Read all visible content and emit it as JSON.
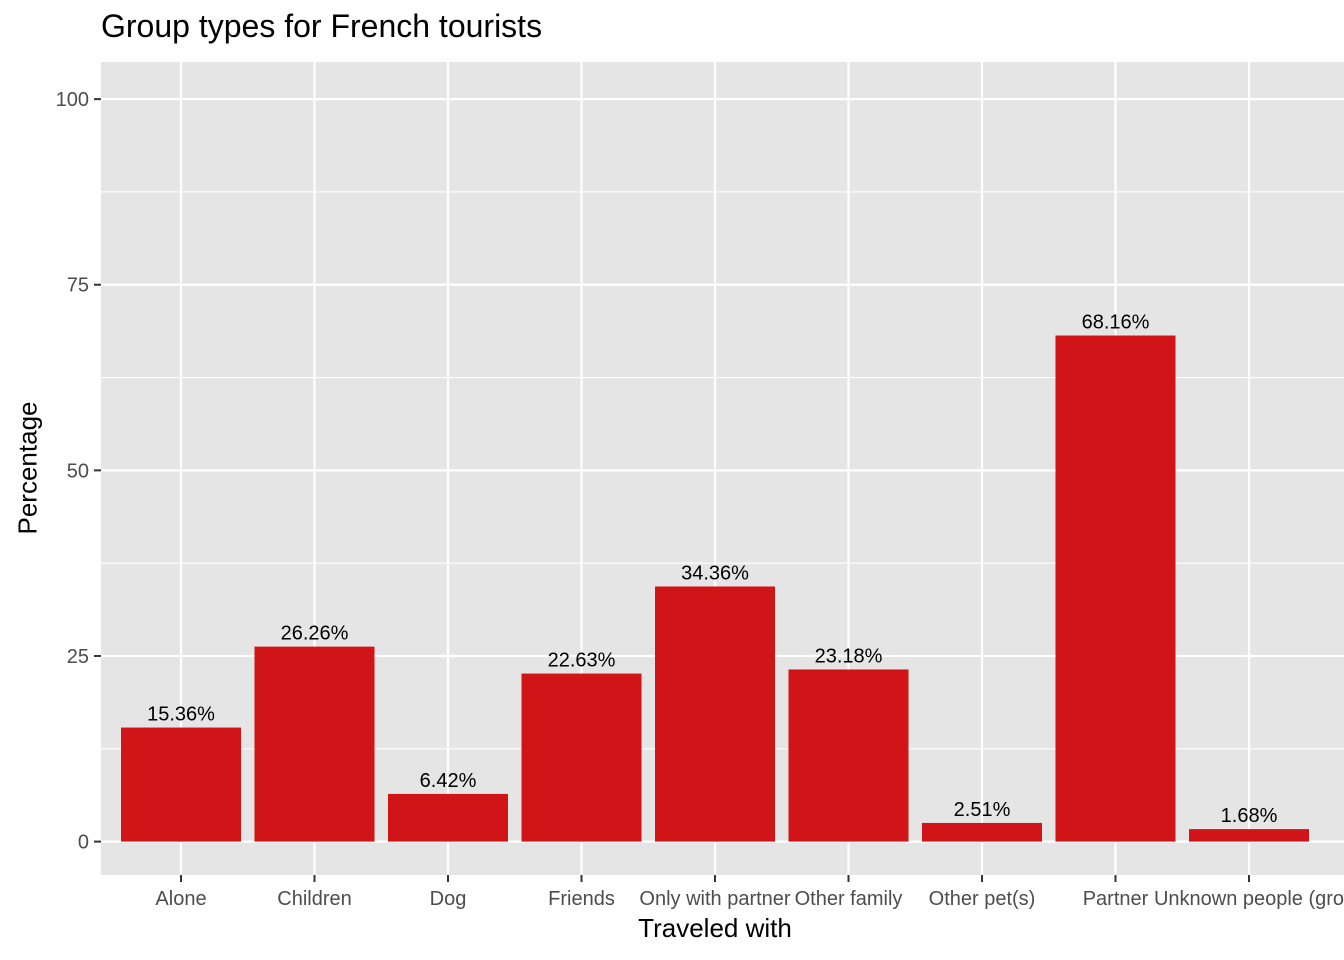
{
  "chart_data": {
    "type": "bar",
    "title": "Group types for French tourists",
    "xlabel": "Traveled with",
    "ylabel": "Percentage",
    "categories": [
      "Alone",
      "Children",
      "Dog",
      "Friends",
      "Only with partner",
      "Other family",
      "Other pet(s)",
      "Partner",
      "Unknown people (gro"
    ],
    "values": [
      15.36,
      26.26,
      6.42,
      22.63,
      34.36,
      23.18,
      2.51,
      68.16,
      1.68
    ],
    "data_labels": [
      "15.36%",
      "26.26%",
      "6.42%",
      "22.63%",
      "34.36%",
      "23.18%",
      "2.51%",
      "68.16%",
      "1.68%"
    ],
    "ylim": [
      -4.5,
      105
    ],
    "yticks": [
      0,
      25,
      50,
      75,
      100
    ],
    "ytick_labels": [
      "0",
      "25",
      "50",
      "75",
      "100"
    ],
    "grid": true,
    "legend": "none",
    "colors": {
      "bar": "#D01418",
      "panel": "#E5E5E5",
      "grid": "#FFFFFF",
      "tick_text": "#4D4D4D",
      "tick_mark": "#333333"
    }
  }
}
